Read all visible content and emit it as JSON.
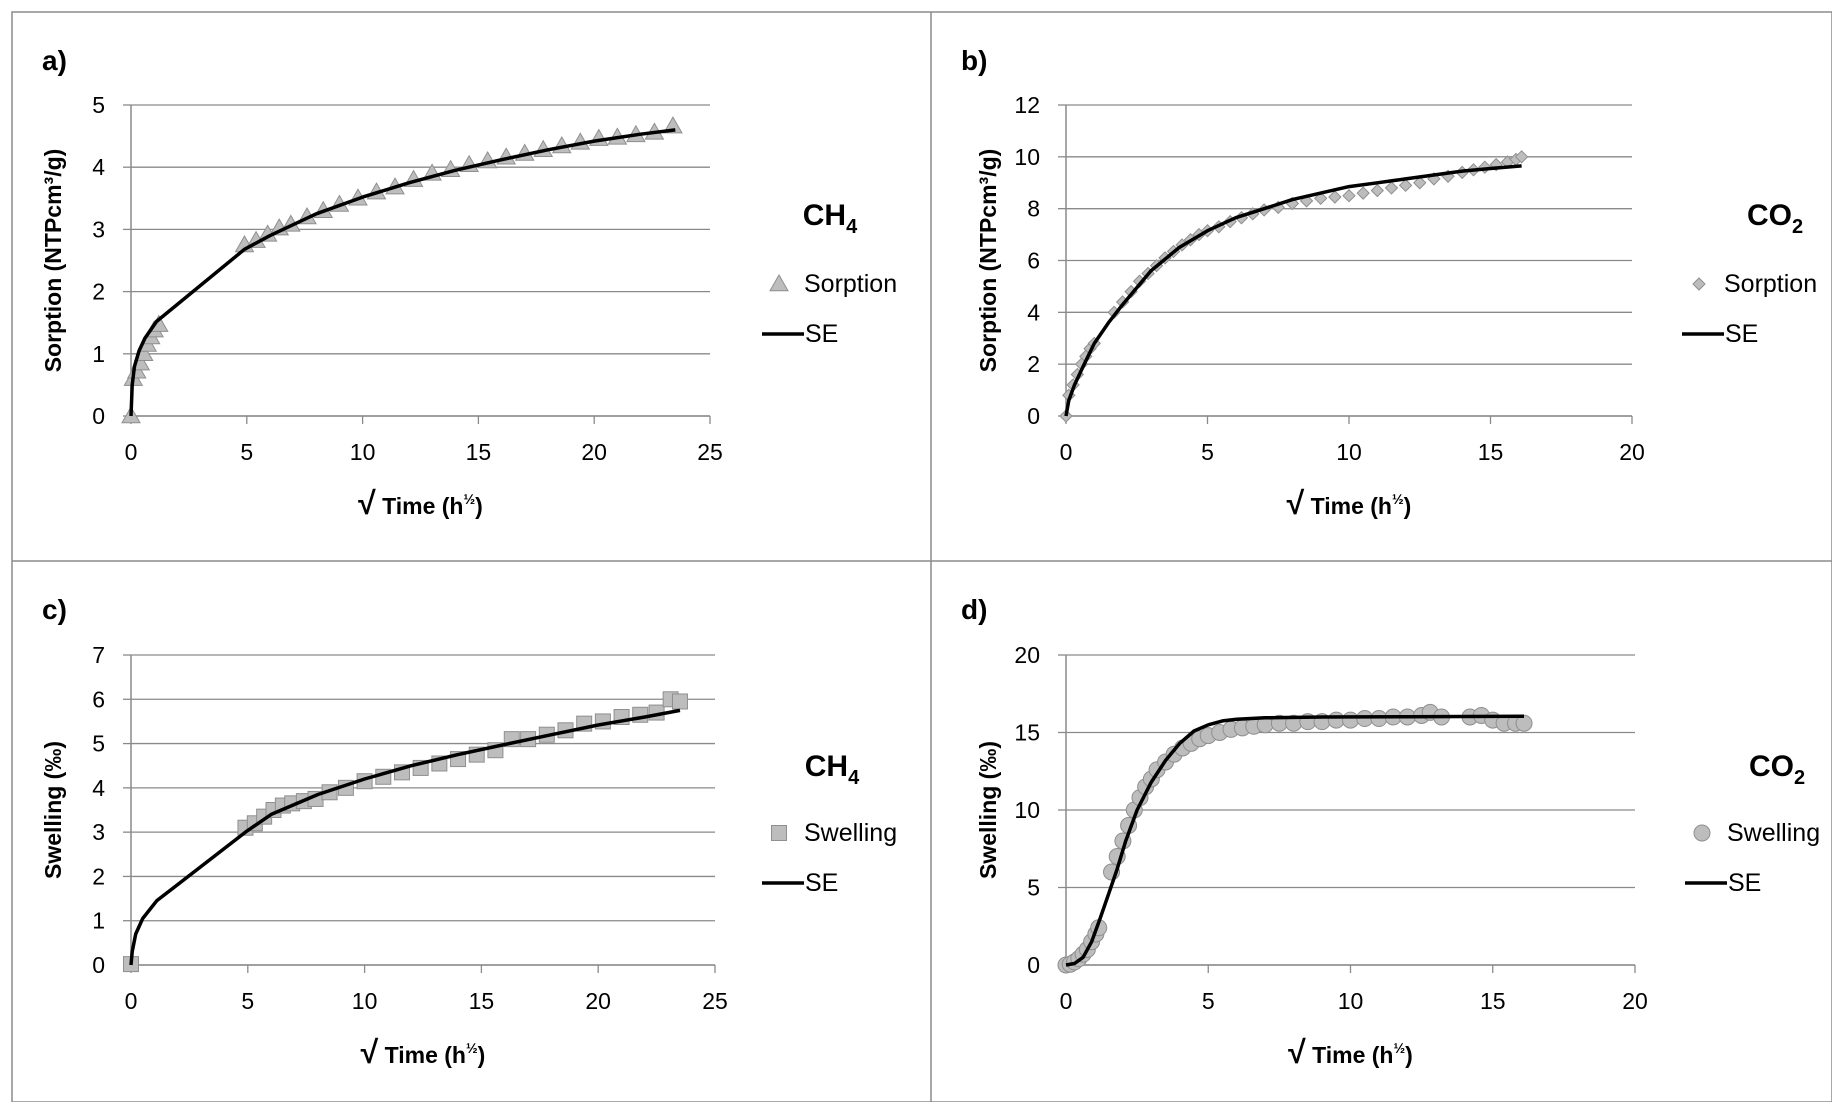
{
  "chart_data": [
    {
      "panel_label": "a)",
      "type": "scatter",
      "gas": "CH",
      "gas_sub": "4",
      "xlabel_main": "Time (h",
      "xlabel_sup": "½",
      "xlabel_end": ")",
      "ylabel": "Sorption (NTPcm³/g)",
      "xlim": [
        0,
        25
      ],
      "ylim": [
        0,
        5
      ],
      "xticks": [
        0,
        5,
        10,
        15,
        20,
        25
      ],
      "yticks": [
        0,
        1,
        2,
        3,
        4,
        5
      ],
      "marker": "triangle",
      "series": [
        {
          "name": "Sorption",
          "points": [
            [
              0,
              0
            ],
            [
              0.1,
              0.6
            ],
            [
              0.25,
              0.72
            ],
            [
              0.4,
              0.85
            ],
            [
              0.55,
              1.0
            ],
            [
              0.7,
              1.15
            ],
            [
              0.85,
              1.27
            ],
            [
              1.0,
              1.38
            ],
            [
              1.2,
              1.47
            ],
            [
              4.9,
              2.75
            ],
            [
              5.4,
              2.82
            ],
            [
              5.9,
              2.92
            ],
            [
              6.4,
              3.02
            ],
            [
              6.9,
              3.08
            ],
            [
              7.6,
              3.2
            ],
            [
              8.3,
              3.3
            ],
            [
              9.0,
              3.4
            ],
            [
              9.8,
              3.5
            ],
            [
              10.6,
              3.6
            ],
            [
              11.4,
              3.68
            ],
            [
              12.2,
              3.8
            ],
            [
              13.0,
              3.9
            ],
            [
              13.8,
              3.96
            ],
            [
              14.6,
              4.04
            ],
            [
              15.4,
              4.1
            ],
            [
              16.2,
              4.16
            ],
            [
              17.0,
              4.22
            ],
            [
              17.8,
              4.28
            ],
            [
              18.6,
              4.34
            ],
            [
              19.4,
              4.4
            ],
            [
              20.2,
              4.46
            ],
            [
              21.0,
              4.48
            ],
            [
              21.8,
              4.52
            ],
            [
              22.6,
              4.56
            ],
            [
              23.4,
              4.66
            ]
          ]
        },
        {
          "name": "SE",
          "points": [
            [
              0,
              0
            ],
            [
              0.05,
              0.5
            ],
            [
              0.15,
              0.8
            ],
            [
              0.35,
              1.05
            ],
            [
              0.6,
              1.25
            ],
            [
              1.1,
              1.52
            ],
            [
              4.9,
              2.68
            ],
            [
              6,
              2.9
            ],
            [
              8,
              3.25
            ],
            [
              10,
              3.52
            ],
            [
              12,
              3.75
            ],
            [
              14,
              3.95
            ],
            [
              16,
              4.12
            ],
            [
              18,
              4.28
            ],
            [
              20,
              4.42
            ],
            [
              22,
              4.53
            ],
            [
              23.5,
              4.6
            ]
          ]
        }
      ]
    },
    {
      "panel_label": "b)",
      "type": "scatter",
      "gas": "CO",
      "gas_sub": "2",
      "xlabel_main": "Time (h",
      "xlabel_sup": "½",
      "xlabel_end": ")",
      "ylabel": "Sorption (NTPcm³/g)",
      "xlim": [
        0,
        20
      ],
      "ylim": [
        0,
        12
      ],
      "xticks": [
        0,
        5,
        10,
        15,
        20
      ],
      "yticks": [
        0,
        2,
        4,
        6,
        8,
        10,
        12
      ],
      "marker": "diamond",
      "series": [
        {
          "name": "Sorption",
          "points": [
            [
              0,
              0
            ],
            [
              0.1,
              0.8
            ],
            [
              0.25,
              1.2
            ],
            [
              0.4,
              1.6
            ],
            [
              0.55,
              2.0
            ],
            [
              0.7,
              2.3
            ],
            [
              0.85,
              2.6
            ],
            [
              1.0,
              2.8
            ],
            [
              1.7,
              4.0
            ],
            [
              2.0,
              4.4
            ],
            [
              2.3,
              4.8
            ],
            [
              2.6,
              5.2
            ],
            [
              2.9,
              5.5
            ],
            [
              3.2,
              5.8
            ],
            [
              3.5,
              6.1
            ],
            [
              3.8,
              6.35
            ],
            [
              4.1,
              6.6
            ],
            [
              4.4,
              6.8
            ],
            [
              4.7,
              7.0
            ],
            [
              5.0,
              7.15
            ],
            [
              5.4,
              7.3
            ],
            [
              5.8,
              7.5
            ],
            [
              6.2,
              7.65
            ],
            [
              6.6,
              7.8
            ],
            [
              7.0,
              7.95
            ],
            [
              7.5,
              8.05
            ],
            [
              8.0,
              8.2
            ],
            [
              8.5,
              8.3
            ],
            [
              9.0,
              8.4
            ],
            [
              9.5,
              8.45
            ],
            [
              10.0,
              8.5
            ],
            [
              10.5,
              8.6
            ],
            [
              11.0,
              8.7
            ],
            [
              11.5,
              8.8
            ],
            [
              12.0,
              8.9
            ],
            [
              12.5,
              9.0
            ],
            [
              13.0,
              9.15
            ],
            [
              13.5,
              9.25
            ],
            [
              14.0,
              9.4
            ],
            [
              14.4,
              9.5
            ],
            [
              14.8,
              9.6
            ],
            [
              15.2,
              9.7
            ],
            [
              15.6,
              9.8
            ],
            [
              15.9,
              9.9
            ],
            [
              16.1,
              10.0
            ]
          ]
        },
        {
          "name": "SE",
          "points": [
            [
              0,
              0
            ],
            [
              0.1,
              0.6
            ],
            [
              0.3,
              1.2
            ],
            [
              0.6,
              1.9
            ],
            [
              1.0,
              2.8
            ],
            [
              1.5,
              3.6
            ],
            [
              2.0,
              4.3
            ],
            [
              3.0,
              5.6
            ],
            [
              4.0,
              6.5
            ],
            [
              5.0,
              7.15
            ],
            [
              6.0,
              7.65
            ],
            [
              7.0,
              8.0
            ],
            [
              8.0,
              8.35
            ],
            [
              9.0,
              8.6
            ],
            [
              10.0,
              8.85
            ],
            [
              11.0,
              9.0
            ],
            [
              12.0,
              9.15
            ],
            [
              13.0,
              9.3
            ],
            [
              14.0,
              9.45
            ],
            [
              15.0,
              9.55
            ],
            [
              16.1,
              9.65
            ]
          ]
        }
      ]
    },
    {
      "panel_label": "c)",
      "type": "scatter",
      "gas": "CH",
      "gas_sub": "4",
      "xlabel_main": "Time (h",
      "xlabel_sup": "½",
      "xlabel_end": ")",
      "ylabel": "Swelling (‰)",
      "xlim": [
        0,
        25
      ],
      "ylim": [
        0,
        7
      ],
      "xticks": [
        0,
        5,
        10,
        15,
        20,
        25
      ],
      "yticks": [
        0,
        1,
        2,
        3,
        4,
        5,
        6,
        7
      ],
      "marker": "square",
      "series": [
        {
          "name": "Swelling",
          "points": [
            [
              0,
              0.02
            ],
            [
              4.9,
              3.1
            ],
            [
              5.3,
              3.2
            ],
            [
              5.7,
              3.35
            ],
            [
              6.1,
              3.5
            ],
            [
              6.5,
              3.6
            ],
            [
              6.9,
              3.65
            ],
            [
              7.4,
              3.7
            ],
            [
              7.9,
              3.75
            ],
            [
              8.5,
              3.9
            ],
            [
              9.2,
              4.0
            ],
            [
              10,
              4.15
            ],
            [
              10.8,
              4.25
            ],
            [
              11.6,
              4.35
            ],
            [
              12.4,
              4.45
            ],
            [
              13.2,
              4.55
            ],
            [
              14,
              4.65
            ],
            [
              14.8,
              4.75
            ],
            [
              15.6,
              4.85
            ],
            [
              16.3,
              5.1
            ],
            [
              17,
              5.1
            ],
            [
              17.8,
              5.2
            ],
            [
              18.6,
              5.3
            ],
            [
              19.4,
              5.45
            ],
            [
              20.2,
              5.5
            ],
            [
              21,
              5.6
            ],
            [
              21.8,
              5.65
            ],
            [
              22.5,
              5.7
            ],
            [
              23.1,
              6.0
            ],
            [
              23.5,
              5.95
            ]
          ]
        },
        {
          "name": "SE",
          "points": [
            [
              0,
              0
            ],
            [
              0.05,
              0.3
            ],
            [
              0.2,
              0.7
            ],
            [
              0.5,
              1.05
            ],
            [
              1.1,
              1.45
            ],
            [
              4.9,
              3.0
            ],
            [
              6,
              3.4
            ],
            [
              8,
              3.85
            ],
            [
              10,
              4.2
            ],
            [
              12,
              4.5
            ],
            [
              14,
              4.75
            ],
            [
              16,
              4.98
            ],
            [
              18,
              5.2
            ],
            [
              20,
              5.42
            ],
            [
              22,
              5.6
            ],
            [
              23.5,
              5.75
            ]
          ]
        }
      ]
    },
    {
      "panel_label": "d)",
      "type": "scatter",
      "gas": "CO",
      "gas_sub": "2",
      "xlabel_main": "Time (h",
      "xlabel_sup": "½",
      "xlabel_end": ")",
      "ylabel": "Swelling (‰)",
      "xlim": [
        0,
        20
      ],
      "ylim": [
        0,
        20
      ],
      "xticks": [
        0,
        5,
        10,
        15,
        20
      ],
      "yticks": [
        0,
        5,
        10,
        15,
        20
      ],
      "marker": "circle",
      "series": [
        {
          "name": "Swelling",
          "points": [
            [
              0,
              0
            ],
            [
              0.15,
              0.05
            ],
            [
              0.3,
              0.2
            ],
            [
              0.45,
              0.4
            ],
            [
              0.6,
              0.7
            ],
            [
              0.75,
              1.0
            ],
            [
              0.9,
              1.5
            ],
            [
              1.05,
              2.0
            ],
            [
              1.15,
              2.4
            ],
            [
              1.6,
              6.0
            ],
            [
              1.8,
              7.0
            ],
            [
              2.0,
              8.0
            ],
            [
              2.2,
              9.0
            ],
            [
              2.4,
              10.0
            ],
            [
              2.6,
              10.8
            ],
            [
              2.8,
              11.5
            ],
            [
              3.0,
              12.0
            ],
            [
              3.2,
              12.6
            ],
            [
              3.5,
              13.1
            ],
            [
              3.8,
              13.6
            ],
            [
              4.1,
              14.0
            ],
            [
              4.4,
              14.3
            ],
            [
              4.7,
              14.6
            ],
            [
              5.0,
              14.8
            ],
            [
              5.4,
              15.0
            ],
            [
              5.8,
              15.2
            ],
            [
              6.2,
              15.3
            ],
            [
              6.6,
              15.4
            ],
            [
              7.0,
              15.5
            ],
            [
              7.5,
              15.6
            ],
            [
              8.0,
              15.6
            ],
            [
              8.5,
              15.7
            ],
            [
              9.0,
              15.7
            ],
            [
              9.5,
              15.8
            ],
            [
              10.0,
              15.8
            ],
            [
              10.5,
              15.9
            ],
            [
              11.0,
              15.9
            ],
            [
              11.5,
              16.0
            ],
            [
              12.0,
              16.0
            ],
            [
              12.5,
              16.1
            ],
            [
              12.8,
              16.3
            ],
            [
              13.2,
              16.0
            ],
            [
              14.2,
              16.0
            ],
            [
              14.6,
              16.1
            ],
            [
              15.0,
              15.8
            ],
            [
              15.4,
              15.6
            ],
            [
              15.8,
              15.6
            ],
            [
              16.1,
              15.6
            ]
          ]
        },
        {
          "name": "SE",
          "points": [
            [
              0,
              0
            ],
            [
              0.3,
              0.1
            ],
            [
              0.6,
              0.5
            ],
            [
              0.9,
              1.5
            ],
            [
              1.2,
              3.0
            ],
            [
              1.5,
              4.6
            ],
            [
              1.8,
              6.2
            ],
            [
              2.1,
              8.0
            ],
            [
              2.5,
              10.0
            ],
            [
              3.0,
              11.8
            ],
            [
              3.5,
              13.2
            ],
            [
              4.0,
              14.3
            ],
            [
              4.5,
              15.1
            ],
            [
              5.0,
              15.5
            ],
            [
              5.5,
              15.75
            ],
            [
              6.0,
              15.85
            ],
            [
              7.0,
              15.95
            ],
            [
              9.0,
              16.0
            ],
            [
              12.0,
              16.02
            ],
            [
              16.1,
              16.05
            ]
          ]
        }
      ]
    }
  ]
}
